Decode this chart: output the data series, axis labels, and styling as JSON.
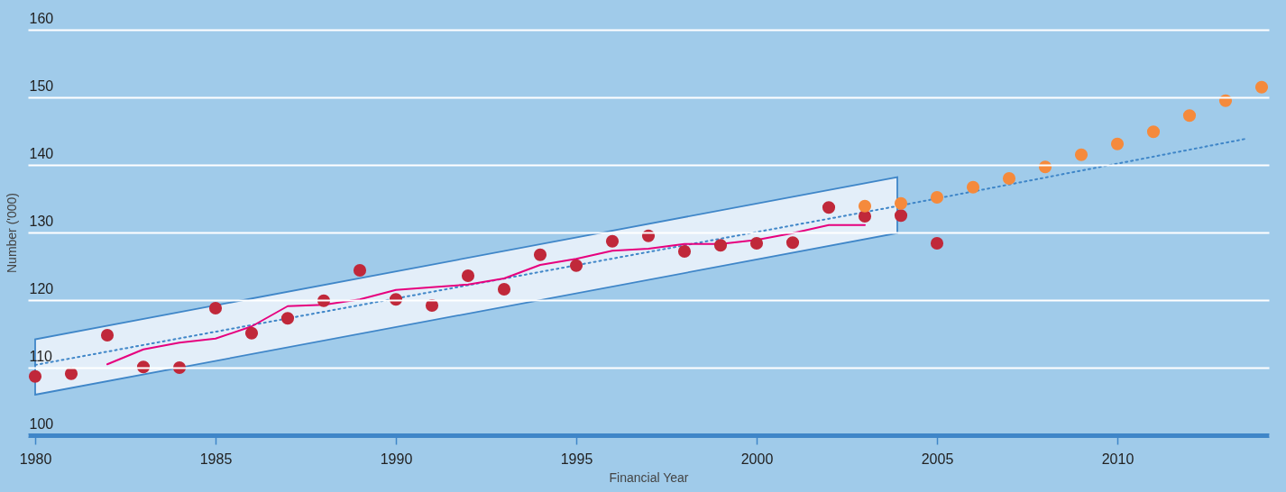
{
  "chart_data": {
    "type": "scatter",
    "xlabel": "Financial Year",
    "ylabel": "Number ('000)",
    "xlim": [
      1979.8,
      2014.2
    ],
    "xticks": [
      1980,
      1985,
      1990,
      1995,
      2000,
      2005,
      2010
    ],
    "ylim": [
      100,
      160
    ],
    "yticks": [
      100,
      110,
      120,
      130,
      140,
      150,
      160
    ],
    "grid": "y",
    "marker": "circle",
    "series": [
      {
        "type": "line",
        "color": "#3f86c8",
        "line_style": "dotted",
        "marker": "none",
        "x": [
          1980,
          2003.9,
          2013.6
        ],
        "values": [
          110.4,
          133.9,
          143.9
        ],
        "lower": [
          106.0,
          129.9,
          null
        ],
        "upper": [
          114.2,
          138.2,
          null
        ]
      },
      {
        "type": "line",
        "color": "#e6007e",
        "line_style": "solid",
        "marker": "none",
        "x": [
          1982,
          1983,
          1984,
          1985,
          1986,
          1987,
          1988,
          1989,
          1990,
          1991,
          1992,
          1993,
          1994,
          1995,
          1996,
          1997,
          1998,
          1999,
          2000,
          2001,
          2002,
          2003
        ],
        "values": [
          110.5,
          112.7,
          113.7,
          114.3,
          116.1,
          119.1,
          119.3,
          120.1,
          121.5,
          121.9,
          122.3,
          123.2,
          125.2,
          126.1,
          127.3,
          127.6,
          128.3,
          128.3,
          128.9,
          129.9,
          131.1,
          131.1
        ]
      },
      {
        "color": "#c0283a",
        "x": [
          1980,
          1981,
          1982,
          1983,
          1984,
          1985,
          1986,
          1987,
          1988,
          1989,
          1990,
          1991,
          1992,
          1993,
          1994,
          1995,
          1996,
          1997,
          1998,
          1999,
          2000,
          2001,
          2002,
          2003,
          2004,
          2005
        ],
        "values": [
          108.7,
          109.1,
          114.8,
          110.1,
          110.0,
          118.8,
          115.1,
          117.3,
          119.9,
          124.4,
          120.1,
          119.2,
          123.6,
          121.6,
          126.7,
          125.1,
          128.7,
          129.5,
          127.2,
          128.1,
          128.4,
          128.5,
          133.7,
          132.4,
          132.5,
          128.4
        ]
      },
      {
        "color": "#f58a3c",
        "x": [
          2003,
          2004,
          2005,
          2006,
          2007,
          2008,
          2009,
          2010,
          2011,
          2012,
          2013,
          2014
        ],
        "values": [
          133.9,
          134.3,
          135.2,
          136.7,
          138.0,
          139.7,
          141.5,
          143.1,
          144.9,
          147.3,
          149.5,
          151.5
        ]
      }
    ]
  }
}
